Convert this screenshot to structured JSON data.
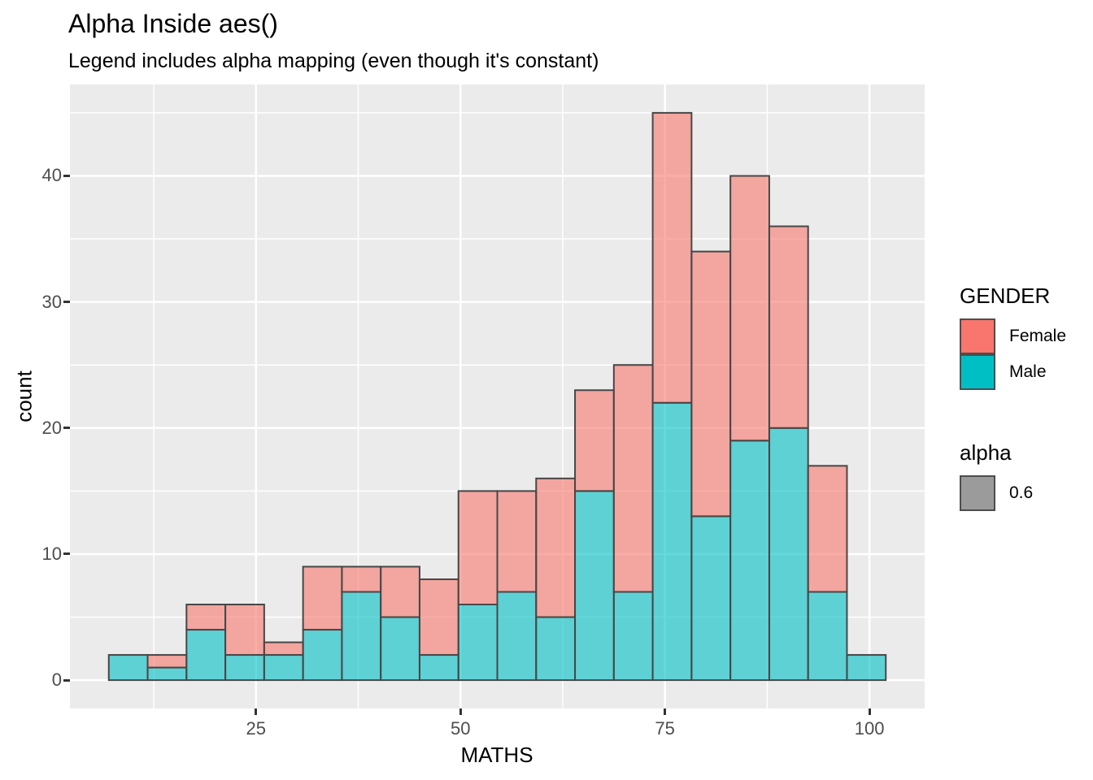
{
  "page": {
    "background": "#FFFFFF"
  },
  "chart_data": {
    "type": "bar",
    "subtype": "stacked-histogram",
    "title": "Alpha Inside aes()",
    "subtitle": "Legend includes alpha mapping (even though it's constant)",
    "xlabel": "MATHS",
    "ylabel": "count",
    "x_ticks": [
      25,
      50,
      75,
      100
    ],
    "y_ticks": [
      0,
      10,
      20,
      30,
      40
    ],
    "x_minor_gridlines": [
      12.5,
      37.5,
      62.5,
      87.5
    ],
    "y_minor_gridlines": [
      5,
      15,
      25,
      35,
      45
    ],
    "x_domain": [
      2.25,
      106.75
    ],
    "y_domain": [
      -2.25,
      47.25
    ],
    "bin_width": 4.75,
    "grid": "on",
    "legend_position": "right",
    "alpha_constant": 0.6,
    "series": [
      {
        "name": "Male",
        "stack_order": "bottom",
        "fill": "#00BFC4"
      },
      {
        "name": "Female",
        "stack_order": "top",
        "fill": "#F8766D"
      }
    ],
    "bins": [
      {
        "x0": 7.0,
        "x1": 11.75,
        "Male": 2,
        "Female": 0
      },
      {
        "x0": 11.75,
        "x1": 16.5,
        "Male": 1,
        "Female": 1
      },
      {
        "x0": 16.5,
        "x1": 21.25,
        "Male": 4,
        "Female": 2
      },
      {
        "x0": 21.25,
        "x1": 26.0,
        "Male": 2,
        "Female": 4
      },
      {
        "x0": 26.0,
        "x1": 30.75,
        "Male": 2,
        "Female": 1
      },
      {
        "x0": 30.75,
        "x1": 35.5,
        "Male": 4,
        "Female": 5
      },
      {
        "x0": 35.5,
        "x1": 40.25,
        "Male": 7,
        "Female": 2
      },
      {
        "x0": 40.25,
        "x1": 45.0,
        "Male": 5,
        "Female": 4
      },
      {
        "x0": 45.0,
        "x1": 49.75,
        "Male": 2,
        "Female": 6
      },
      {
        "x0": 49.75,
        "x1": 54.5,
        "Male": 6,
        "Female": 9
      },
      {
        "x0": 54.5,
        "x1": 59.25,
        "Male": 7,
        "Female": 8
      },
      {
        "x0": 59.25,
        "x1": 64.0,
        "Male": 5,
        "Female": 11
      },
      {
        "x0": 64.0,
        "x1": 68.75,
        "Male": 15,
        "Female": 8
      },
      {
        "x0": 68.75,
        "x1": 73.5,
        "Male": 7,
        "Female": 18
      },
      {
        "x0": 73.5,
        "x1": 78.25,
        "Male": 22,
        "Female": 23
      },
      {
        "x0": 78.25,
        "x1": 83.0,
        "Male": 13,
        "Female": 21
      },
      {
        "x0": 83.0,
        "x1": 87.75,
        "Male": 19,
        "Female": 21
      },
      {
        "x0": 87.75,
        "x1": 92.5,
        "Male": 20,
        "Female": 16
      },
      {
        "x0": 92.5,
        "x1": 97.25,
        "Male": 7,
        "Female": 10
      },
      {
        "x0": 97.25,
        "x1": 102.0,
        "Male": 2,
        "Female": 0
      }
    ],
    "colors": {
      "panel_background": "#EBEBEB",
      "gridline": "#FFFFFF",
      "bar_stroke": "#474747",
      "female_fill": "#F8766D",
      "male_fill": "#00BFC4",
      "fill_alpha": 0.6,
      "tick_mark": "#333333",
      "tick_label": "#4D4D4D"
    }
  },
  "legend": {
    "gender": {
      "title": "GENDER",
      "items": [
        {
          "label": "Female",
          "color": "#F8766D"
        },
        {
          "label": "Male",
          "color": "#00BFC4"
        }
      ]
    },
    "alpha": {
      "title": "alpha",
      "items": [
        {
          "label": "0.6",
          "color": "#9B9B9B"
        }
      ]
    }
  }
}
